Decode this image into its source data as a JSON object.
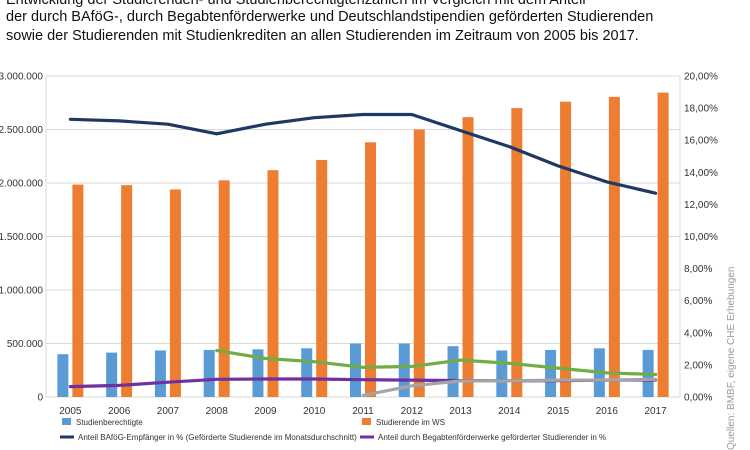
{
  "header": {
    "lines": [
      "Entwicklung der Studierenden- und Studienberechtigtenzahlen im Vergleich mit dem Anteil",
      "der durch BAföG-, durch Begabtenförderwerke und Deutschlandstipendien geförderten Studierenden",
      "sowie der Studierenden mit Studienkrediten an allen Studierenden im Zeitraum von 2005 bis 2017."
    ]
  },
  "source": "Quellen: BMBF, eigene CHE Erhebungen",
  "chart_data": {
    "type": "bar",
    "categories": [
      "2005",
      "2006",
      "2007",
      "2008",
      "2009",
      "2010",
      "2011",
      "2012",
      "2013",
      "2014",
      "2015",
      "2016",
      "2017"
    ],
    "y_left": {
      "min": 0,
      "max": 3000000,
      "ticks": [
        0,
        500000,
        1000000,
        1500000,
        2000000,
        2500000,
        3000000
      ],
      "tick_labels": [
        "0",
        "500.000",
        "1.000.000",
        "1.500.000",
        "2.000.000",
        "2.500.000",
        "3.000.000"
      ]
    },
    "y_right": {
      "min": 0,
      "max": 20,
      "ticks": [
        0,
        2,
        4,
        6,
        8,
        10,
        12,
        14,
        16,
        18,
        20
      ],
      "tick_labels": [
        "0,00%",
        "2,00%",
        "4,00%",
        "6,00%",
        "8,00%",
        "10,00%",
        "12,00%",
        "14,00%",
        "16,00%",
        "18,00%",
        "20,00%"
      ]
    },
    "grid": true,
    "legend_position": "bottom",
    "bar_series": [
      {
        "name": "Studienberechtigte",
        "color": "#5b9bd5",
        "values": [
          400000,
          415000,
          435000,
          440000,
          445000,
          455000,
          500000,
          500000,
          475000,
          435000,
          440000,
          455000,
          440000
        ]
      },
      {
        "name": "Studierende im WS",
        "color": "#ed7d31",
        "values": [
          1985000,
          1980000,
          1940000,
          2025000,
          2120000,
          2215000,
          2380000,
          2500000,
          2615000,
          2700000,
          2760000,
          2805000,
          2845000
        ]
      }
    ],
    "line_series": [
      {
        "name": "Anteil BAföG-Empfänger in % (Geförderte Studierende im Monatsdurchschnitt)",
        "color": "#203864",
        "values": [
          17.3,
          17.2,
          17.0,
          16.4,
          17.0,
          17.4,
          17.6,
          17.6,
          16.6,
          15.6,
          14.4,
          13.4,
          12.7
        ]
      },
      {
        "name": "Anteil durch Begabtenförderwerke geförderter Studierender in %",
        "color": "#7030a0",
        "values": [
          0.65,
          0.72,
          0.92,
          1.1,
          1.12,
          1.12,
          1.08,
          1.05,
          1.02,
          1.0,
          1.02,
          1.05,
          1.06
        ]
      },
      {
        "name": "",
        "color": "#70ad47",
        "values": [
          null,
          null,
          null,
          2.9,
          2.4,
          2.2,
          1.85,
          1.9,
          2.3,
          2.1,
          1.8,
          1.5,
          1.4
        ]
      },
      {
        "name": "",
        "color": "#a5a5a5",
        "values": [
          null,
          null,
          null,
          null,
          null,
          null,
          0.1,
          0.7,
          1.0,
          1.0,
          1.05,
          1.05,
          1.1
        ]
      }
    ]
  }
}
